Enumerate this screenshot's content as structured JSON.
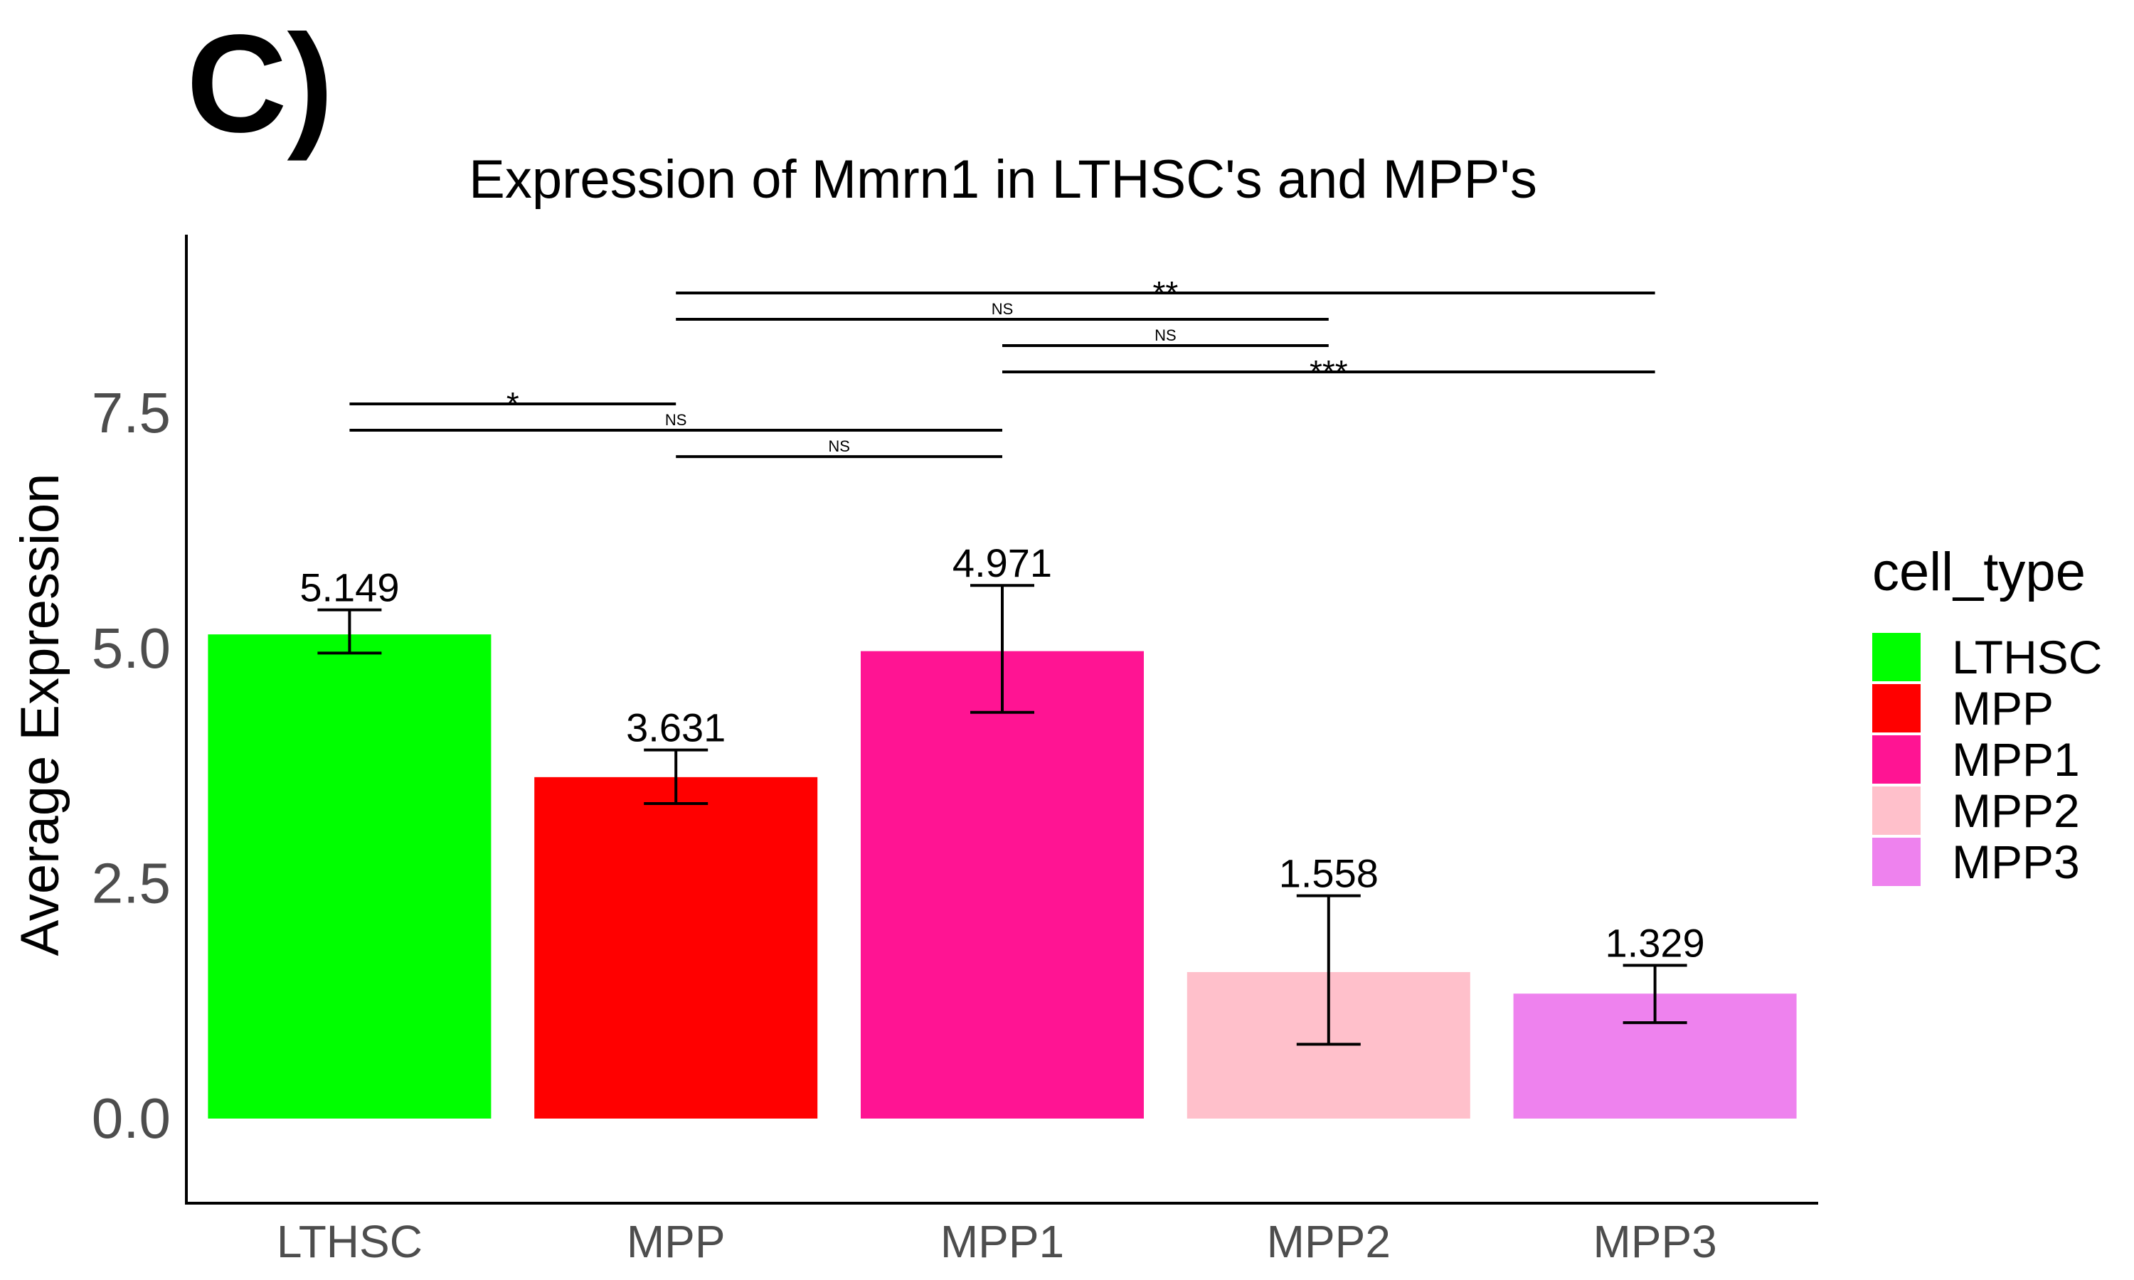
{
  "panel_label": "C)",
  "chart_data": {
    "type": "bar",
    "title": "Expression of Mmrn1 in LTHSC's and MPP's",
    "xlabel": "",
    "ylabel": "Average Expression",
    "ylim": [
      -0.9,
      9.4
    ],
    "yticks": [
      0.0,
      2.5,
      5.0,
      7.5
    ],
    "ytick_labels": [
      "0.0",
      "2.5",
      "5.0",
      "7.5"
    ],
    "grid": false,
    "legend_position": "right",
    "legend_title": "cell_type",
    "categories": [
      "LTHSC",
      "MPP",
      "MPP1",
      "MPP2",
      "MPP3"
    ],
    "values": [
      5.149,
      3.631,
      4.971,
      1.558,
      1.329
    ],
    "value_labels": [
      "5.149",
      "3.631",
      "4.971",
      "1.558",
      "1.329"
    ],
    "error_low": [
      4.95,
      3.35,
      4.32,
      0.79,
      1.02
    ],
    "error_high": [
      5.41,
      3.92,
      5.67,
      2.37,
      1.63
    ],
    "colors": [
      "#00ff00",
      "#ff0000",
      "#ff1493",
      "#ffc0cb",
      "#ee82ee"
    ],
    "comparisons": [
      {
        "from": "MPP",
        "to": "MPP3",
        "y": 8.78,
        "label": "**"
      },
      {
        "from": "MPP",
        "to": "MPP2",
        "y": 8.5,
        "label": "NS"
      },
      {
        "from": "MPP1",
        "to": "MPP2",
        "y": 8.22,
        "label": "NS"
      },
      {
        "from": "MPP1",
        "to": "MPP3",
        "y": 7.94,
        "label": "***"
      },
      {
        "from": "LTHSC",
        "to": "MPP",
        "y": 7.6,
        "label": "*"
      },
      {
        "from": "LTHSC",
        "to": "MPP1",
        "y": 7.32,
        "label": "NS"
      },
      {
        "from": "MPP",
        "to": "MPP1",
        "y": 7.04,
        "label": "NS"
      }
    ]
  }
}
